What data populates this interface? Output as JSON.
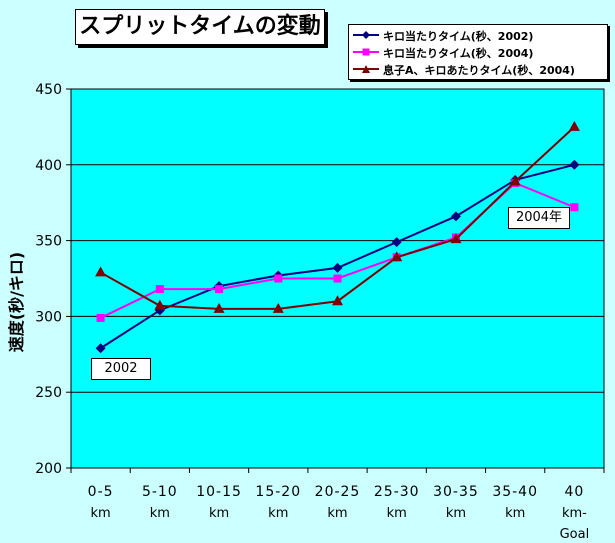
{
  "title": "スプリットタイムの変動",
  "chart_data": {
    "type": "line",
    "ylabel": "速度(秒/キロ)",
    "xlabel": "",
    "ylim": [
      200,
      450
    ],
    "yticks": [
      200,
      250,
      300,
      350,
      400,
      450
    ],
    "grid": true,
    "legend_position": "top-right",
    "categories": [
      [
        "0-5",
        "km"
      ],
      [
        "5-10",
        "km"
      ],
      [
        "10-15",
        "km"
      ],
      [
        "15-20",
        "km"
      ],
      [
        "20-25",
        "km"
      ],
      [
        "25-30",
        "km"
      ],
      [
        "30-35",
        "km"
      ],
      [
        "35-40",
        "km"
      ],
      [
        "40",
        "km-",
        "Goal"
      ]
    ],
    "series": [
      {
        "name": "キロ当たりタイム(秒、2002)",
        "color": "#000080",
        "marker": "diamond",
        "values": [
          279,
          304,
          320,
          327,
          332,
          349,
          366,
          390,
          400
        ]
      },
      {
        "name": "キロ当たりタイム(秒、2004)",
        "color": "#ff00ff",
        "marker": "square",
        "values": [
          299,
          318,
          318,
          325,
          325,
          339,
          352,
          388,
          372
        ]
      },
      {
        "name": "息子A、キロあたりタイム(秒、2004)",
        "color": "#800000",
        "marker": "triangle",
        "values": [
          329,
          307,
          305,
          305,
          310,
          339,
          351,
          389,
          425
        ]
      }
    ],
    "annotations": [
      {
        "text": "2002"
      },
      {
        "text": "2004年"
      }
    ]
  },
  "colors": {
    "background": "#ccffff",
    "plot_area": "#00ffff"
  }
}
